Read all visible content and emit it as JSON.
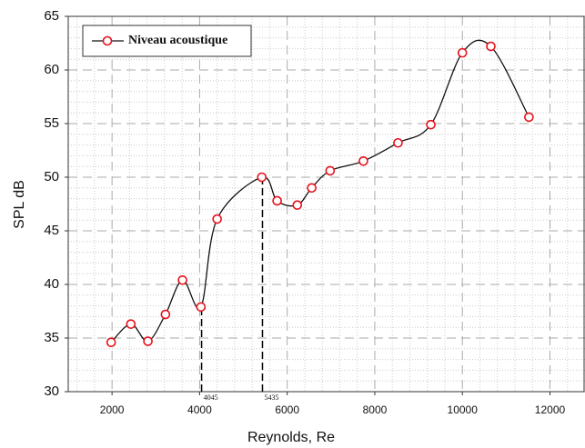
{
  "chart_data": {
    "type": "line",
    "xlabel": "Reynolds, Re",
    "ylabel": "SPL dB",
    "x": [
      1980,
      2430,
      2820,
      3220,
      3610,
      4030,
      4400,
      5420,
      5770,
      6230,
      6560,
      6980,
      7740,
      8530,
      9280,
      10000,
      10650,
      11520
    ],
    "series": [
      {
        "name": "Niveau acoustique",
        "color": "#e8101a",
        "values": [
          34.6,
          36.3,
          34.7,
          37.2,
          40.4,
          37.9,
          46.1,
          50.0,
          47.8,
          47.4,
          49.0,
          50.6,
          51.5,
          53.2,
          54.9,
          61.6,
          62.2,
          55.6
        ]
      }
    ],
    "xlim": [
      1000,
      12800
    ],
    "ylim": [
      30,
      65
    ],
    "xticks": [
      2000,
      4000,
      6000,
      8000,
      10000,
      12000
    ],
    "yticks": [
      30,
      35,
      40,
      45,
      50,
      55,
      60,
      65
    ],
    "vlines": [
      4045,
      5435
    ],
    "grid": true,
    "legend": "upper left"
  }
}
